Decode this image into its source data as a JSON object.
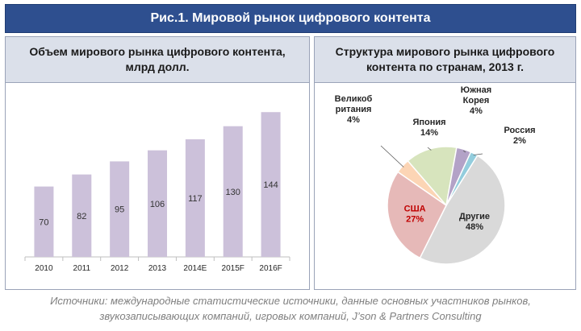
{
  "title": "Рис.1. Мировой рынок цифрового контента",
  "source_lines": [
    "Источники: международные статистические источники, данные основных участников рынков,",
    "звукозаписывающих компаний, игровых компаний, J’son & Partners Consulting"
  ],
  "colors": {
    "header_bg": "#2e4f8f",
    "bar": "#ccc1da",
    "pie": {
      "Другие": "#d9d9d9",
      "США": "#e6b9b8",
      "Великобритания": "#fcd5b5",
      "Япония": "#d7e4bd",
      "Южная Корея": "#b3a2c7",
      "Россия": "#93cddd"
    }
  },
  "chart_data": [
    {
      "type": "bar",
      "title": "Объем мирового рынка цифрового контента, млрд долл.",
      "categories": [
        "2010",
        "2011",
        "2012",
        "2013",
        "2014E",
        "2015F",
        "2016F"
      ],
      "values": [
        70,
        82,
        95,
        106,
        117,
        130,
        144
      ],
      "xlabel": "",
      "ylabel": "",
      "ylim": [
        0,
        165
      ],
      "grid": false,
      "legend": "none"
    },
    {
      "type": "pie",
      "title": "Структура мирового рынка цифрового контента по странам, 2013 г.",
      "slices": [
        {
          "label": "Другие",
          "value": 48,
          "text": "48%"
        },
        {
          "label": "США",
          "value": 27,
          "text": "27%"
        },
        {
          "label": "Великобритания",
          "value": 4,
          "text": "4%",
          "label_lines": [
            "Великоб",
            "ритания"
          ]
        },
        {
          "label": "Япония",
          "value": 14,
          "text": "14%"
        },
        {
          "label": "Южная Корея",
          "value": 4,
          "text": "4%",
          "label_lines": [
            "Южная",
            "Корея"
          ]
        },
        {
          "label": "Россия",
          "value": 2,
          "text": "2%"
        }
      ]
    }
  ]
}
